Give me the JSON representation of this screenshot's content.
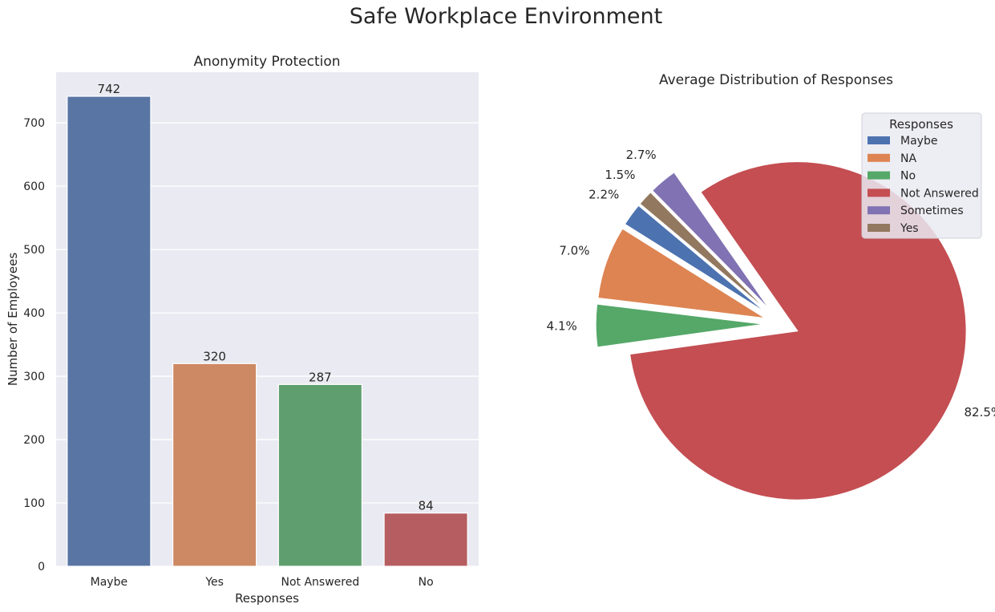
{
  "figure": {
    "title": "Safe Workplace Environment"
  },
  "chart_data": [
    {
      "type": "bar",
      "title": "Anonymity Protection",
      "xlabel": "Responses",
      "ylabel": "Number of Employees",
      "categories": [
        "Maybe",
        "Yes",
        "Not Answered",
        "No"
      ],
      "values": [
        742,
        320,
        287,
        84
      ],
      "value_labels": [
        "742",
        "320",
        "287",
        "84"
      ],
      "colors": [
        "#5975a4",
        "#cc8963",
        "#5f9e6e",
        "#b55d60"
      ],
      "ylim": [
        0,
        780
      ],
      "yticks": [
        0,
        100,
        200,
        300,
        400,
        500,
        600,
        700
      ],
      "ytick_labels": [
        "0",
        "100",
        "200",
        "300",
        "400",
        "500",
        "600",
        "700"
      ],
      "grid": true,
      "background": "#eaeaf2"
    },
    {
      "type": "pie",
      "title": "Average Distribution of Responses",
      "labels": [
        "Maybe",
        "NA",
        "No",
        "Not Answered",
        "Sometimes",
        "Yes"
      ],
      "values": [
        2.2,
        7.0,
        4.1,
        82.5,
        2.7,
        1.5
      ],
      "pct_labels": [
        "2.2%",
        "7.0%",
        "4.1%",
        "82.5%",
        "2.7%",
        "1.5%"
      ],
      "colors": [
        "#4c72b0",
        "#dd8452",
        "#55a868",
        "#c44e52",
        "#8172b3",
        "#937860"
      ],
      "legend_title": "Responses",
      "legend_position": "upper right",
      "exploded": true
    }
  ]
}
